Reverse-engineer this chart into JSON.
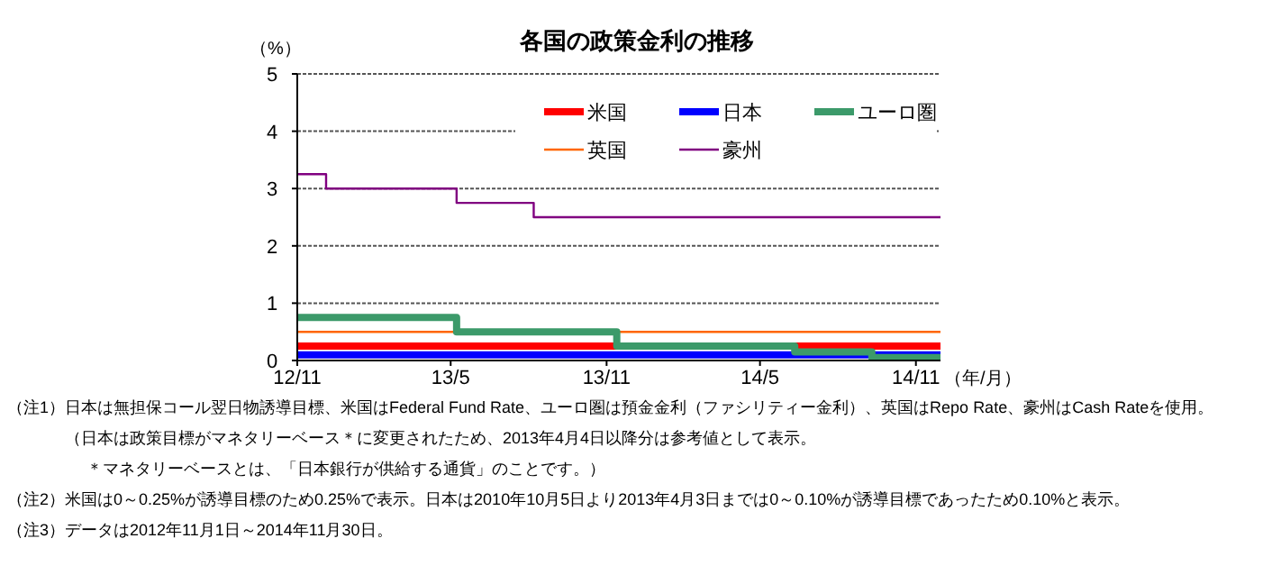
{
  "chart_data": {
    "type": "step",
    "title": "各国の政策金利の推移",
    "ylabel": "（%）",
    "xlabel": "（年/月）",
    "xlim": [
      "2012-11-01",
      "2014-11-30"
    ],
    "ylim": [
      0,
      5
    ],
    "yticks": [
      0,
      1,
      2,
      3,
      4,
      5
    ],
    "xticks": [
      {
        "value": "2012-11-01",
        "label": "12/11"
      },
      {
        "value": "2013-05-01",
        "label": "13/5"
      },
      {
        "value": "2013-11-01",
        "label": "13/11"
      },
      {
        "value": "2014-05-01",
        "label": "14/5"
      },
      {
        "value": "2014-11-01",
        "label": "14/11"
      }
    ],
    "grid": "y",
    "legend": "top right",
    "series": [
      {
        "name": "米国",
        "color": "#ff0000",
        "x": [
          "2012-11-01",
          "2014-11-30"
        ],
        "values": [
          0.25,
          0.25
        ]
      },
      {
        "name": "日本",
        "color": "#0000ff",
        "x": [
          "2012-11-01",
          "2014-11-30"
        ],
        "values": [
          0.1,
          0.1
        ]
      },
      {
        "name": "ユーロ圏",
        "color": "#3c9a6a",
        "x": [
          "2012-11-01",
          "2013-05-08",
          "2013-11-13",
          "2014-06-11",
          "2014-09-10",
          "2014-11-30"
        ],
        "values": [
          0.75,
          0.5,
          0.25,
          0.15,
          0.05,
          0.05
        ]
      },
      {
        "name": "英国",
        "color": "#ff6600",
        "x": [
          "2012-11-01",
          "2014-11-30"
        ],
        "values": [
          0.5,
          0.5
        ]
      },
      {
        "name": "豪州",
        "color": "#800080",
        "x": [
          "2012-11-01",
          "2012-12-05",
          "2013-05-08",
          "2013-08-07",
          "2014-11-30"
        ],
        "values": [
          3.25,
          3.0,
          2.75,
          2.5,
          2.5
        ]
      }
    ],
    "annotations": [
      "（注1）日本は無担保コール翌日物誘導目標、米国はFederal Fund Rate、ユーロ圏は預金金利（ファシリティー金利）、英国はRepo Rate、豪州はCash Rateを使用。",
      "（日本は政策目標がマネタリーベース＊に変更されたため、2013年4月4日以降分は参考値として表示。",
      "＊マネタリーベースとは、「日本銀行が供給する通貨」のことです。）",
      "（注2）米国は0～0.25%が誘導目標のため0.25%で表示。日本は2010年10月5日より2013年4月3日までは0～0.10%が誘導目標であったため0.10%と表示。",
      "（注3）データは2012年11月1日～2014年11月30日。"
    ]
  }
}
